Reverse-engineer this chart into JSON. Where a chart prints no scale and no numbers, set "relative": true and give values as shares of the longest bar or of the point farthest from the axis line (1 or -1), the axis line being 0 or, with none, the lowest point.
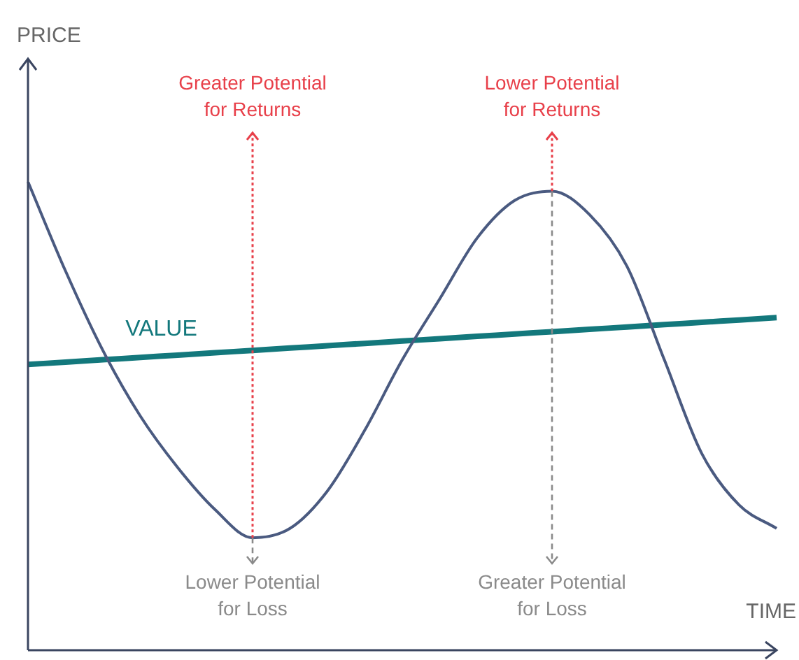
{
  "chart_data": {
    "type": "line",
    "relative": true,
    "xlabel": "TIME",
    "categories": [
      null,
      null,
      null,
      null,
      null,
      null,
      null,
      null,
      null,
      null,
      null,
      null,
      null,
      null,
      null,
      null,
      null,
      null,
      null,
      null,
      null
    ],
    "series": [
      {
        "color": "#4a5a80",
        "values": [
          1.0,
          0.81,
          0.64,
          0.5,
          0.39,
          0.3,
          0.24,
          0.26,
          0.34,
          0.47,
          0.62,
          0.75,
          0.88,
          0.96,
          0.98,
          0.93,
          0.82,
          0.62,
          0.42,
          0.31,
          0.26
        ]
      },
      {
        "name": "VALUE",
        "color": "#13787c",
        "values": [
          0.61,
          0.615,
          0.62,
          0.625,
          0.63,
          0.635,
          0.64,
          0.645,
          0.65,
          0.655,
          0.66,
          0.665,
          0.67,
          0.675,
          0.68,
          0.685,
          0.69,
          0.695,
          0.7,
          0.705,
          0.71
        ]
      }
    ],
    "annotations": [
      "Greater Potential for Returns",
      "Lower Potential for Loss",
      "Lower Potential for Returns",
      "Greater Potential for Loss",
      "PRICE"
    ],
    "legend": false,
    "marker": "none",
    "line_style": "solid"
  }
}
